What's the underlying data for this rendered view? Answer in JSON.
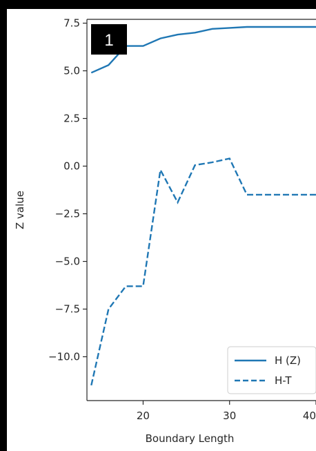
{
  "chart_data": {
    "type": "line",
    "panel_label": "1",
    "xlabel": "Boundary Length",
    "ylabel": "Z value",
    "xlim": [
      13.5,
      40
    ],
    "ylim": [
      -12.3,
      7.7
    ],
    "xticks": [
      {
        "value": 20,
        "label": "20"
      },
      {
        "value": 30,
        "label": "30"
      },
      {
        "value": 40,
        "label": "40"
      }
    ],
    "yticks": [
      {
        "value": 7.5,
        "label": "7.5"
      },
      {
        "value": 5.0,
        "label": "5.0"
      },
      {
        "value": 2.5,
        "label": "2.5"
      },
      {
        "value": 0.0,
        "label": "0.0"
      },
      {
        "value": -2.5,
        "label": "−2.5"
      },
      {
        "value": -5.0,
        "label": "−5.0"
      },
      {
        "value": -7.5,
        "label": "−7.5"
      },
      {
        "value": -10.0,
        "label": "−10.0"
      }
    ],
    "grid": false,
    "legend_position": "lower-right",
    "series": [
      {
        "name": "H (Z)",
        "style": "solid",
        "color": "#1f77b4",
        "points": [
          [
            14,
            4.9
          ],
          [
            16,
            5.3
          ],
          [
            18,
            6.3
          ],
          [
            20,
            6.3
          ],
          [
            22,
            6.7
          ],
          [
            24,
            6.9
          ],
          [
            26,
            7.0
          ],
          [
            28,
            7.2
          ],
          [
            30,
            7.25
          ],
          [
            32,
            7.3
          ],
          [
            34,
            7.3
          ],
          [
            36,
            7.3
          ],
          [
            38,
            7.3
          ],
          [
            40,
            7.3
          ]
        ]
      },
      {
        "name": "H-T",
        "style": "dashed",
        "color": "#1f77b4",
        "points": [
          [
            14,
            -11.5
          ],
          [
            16,
            -7.5
          ],
          [
            18,
            -6.3
          ],
          [
            20,
            -6.3
          ],
          [
            22,
            -0.2
          ],
          [
            24,
            -1.9
          ],
          [
            26,
            0.05
          ],
          [
            28,
            0.2
          ],
          [
            30,
            0.4
          ],
          [
            32,
            -1.5
          ],
          [
            34,
            -1.5
          ],
          [
            36,
            -1.5
          ],
          [
            38,
            -1.5
          ],
          [
            40,
            -1.5
          ]
        ]
      }
    ]
  }
}
